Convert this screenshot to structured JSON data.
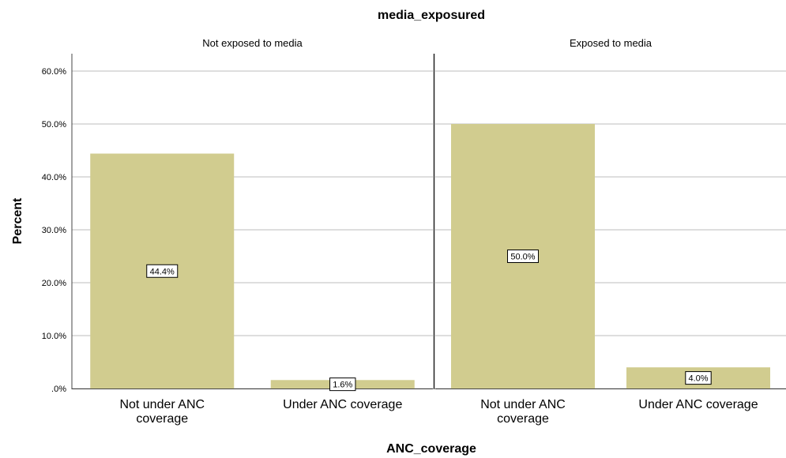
{
  "chart_data": {
    "type": "bar",
    "title": "media_exposured",
    "xlabel": "ANC_coverage",
    "ylabel": "Percent",
    "categories": [
      "Not under ANC coverage",
      "Under ANC coverage"
    ],
    "y_ticks": [
      ".0%",
      "10.0%",
      "20.0%",
      "30.0%",
      "40.0%",
      "50.0%",
      "60.0%"
    ],
    "ylim": [
      0,
      60
    ],
    "grid": true,
    "bar_color": "#d1cc8f",
    "panels": [
      {
        "name": "Not exposed to media",
        "values": [
          44.4,
          1.6
        ],
        "data_labels": [
          "44.4%",
          "1.6%"
        ]
      },
      {
        "name": "Exposed to media",
        "values": [
          50.0,
          4.0
        ],
        "data_labels": [
          "50.0%",
          "4.0%"
        ]
      }
    ]
  }
}
